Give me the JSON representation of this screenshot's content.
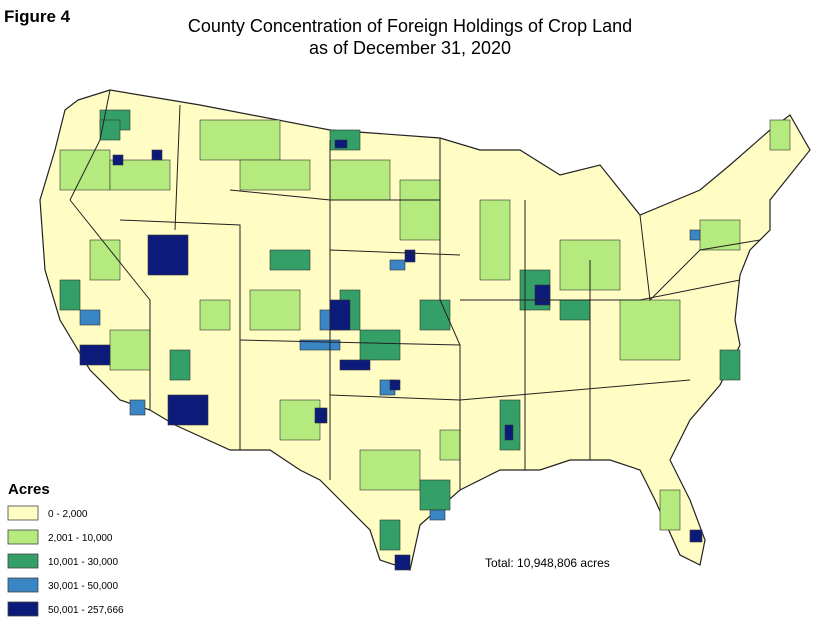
{
  "figure_label": "Figure 4",
  "title": [
    "County Concentration of Foreign Holdings of Crop Land",
    "as of December 31, 2020"
  ],
  "legend": {
    "title": "Acres",
    "entries": [
      {
        "label": "0 - 2,000",
        "color": "#fffcc4"
      },
      {
        "label": "2,001 - 10,000",
        "color": "#b5ea7f"
      },
      {
        "label": "10,001 - 30,000",
        "color": "#34a068"
      },
      {
        "label": "30,001 - 50,000",
        "color": "#3a86c4"
      },
      {
        "label": "50,001 - 257,666",
        "color": "#0c1a7a"
      }
    ]
  },
  "annotation": "Total: 10,948,806 acres"
}
